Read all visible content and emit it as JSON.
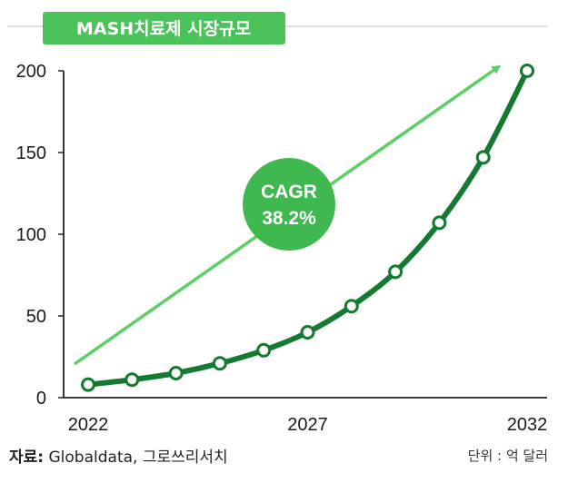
{
  "title": "MASH치료제 시장규모",
  "cagr": {
    "label": "CAGR",
    "value": "38.2%"
  },
  "footer": {
    "source_label": "자료:",
    "source_text": "Globaldata, 그로쓰리서치",
    "unit": "단위 : 억 달러"
  },
  "colors": {
    "title_bg": "#4cc35a",
    "line": "#147a32",
    "arrow": "#5ccf66",
    "cagr_circle": "#3fb94f",
    "marker_fill": "#ffffff"
  },
  "chart_data": {
    "type": "line",
    "x": [
      2022,
      2023,
      2024,
      2025,
      2026,
      2027,
      2028,
      2029,
      2030,
      2031,
      2032
    ],
    "series": [
      {
        "values": [
          8,
          11,
          15,
          21,
          29,
          40,
          56,
          77,
          107,
          147,
          200
        ]
      }
    ],
    "ylim": [
      0,
      200
    ],
    "xlim": [
      2022,
      2032
    ],
    "yticks": [
      0,
      50,
      100,
      150,
      200
    ],
    "xticks": [
      2022,
      2027,
      2032
    ],
    "grid": false,
    "markers": "hollow-circle"
  }
}
